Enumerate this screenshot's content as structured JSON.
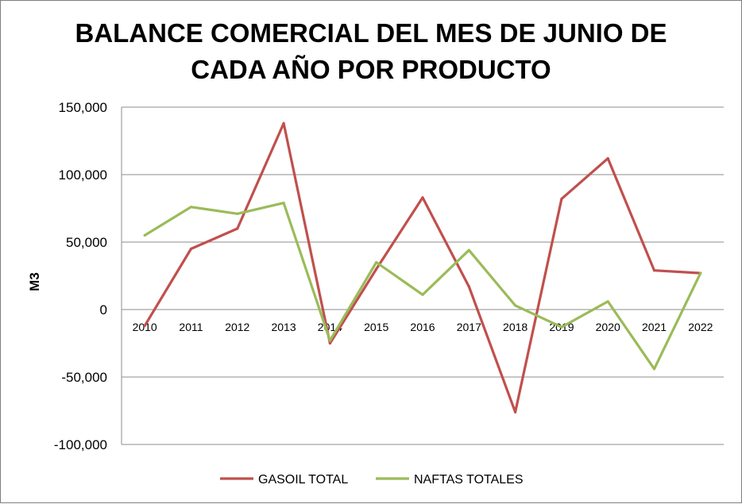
{
  "chart_data": {
    "type": "line",
    "title_lines": [
      "BALANCE COMERCIAL DEL MES DE JUNIO DE",
      "CADA AÑO POR PRODUCTO"
    ],
    "xlabel": "",
    "ylabel": "M3",
    "categories": [
      "2010",
      "2011",
      "2012",
      "2013",
      "2014",
      "2015",
      "2016",
      "2017",
      "2018",
      "2019",
      "2020",
      "2021",
      "2022"
    ],
    "ylim": [
      -100000,
      150000
    ],
    "yticks": [
      150000,
      100000,
      50000,
      0,
      -50000,
      -100000
    ],
    "ytick_labels": [
      "150,000",
      "100,000",
      "50,000",
      "0",
      "-50,000",
      "-100,000"
    ],
    "grid": true,
    "legend_position": "bottom",
    "series": [
      {
        "name": "GASOIL TOTAL",
        "color": "#c0504d",
        "values": [
          -12000,
          45000,
          60000,
          138000,
          -25000,
          30000,
          83000,
          17000,
          -76000,
          82000,
          112000,
          29000,
          27000
        ]
      },
      {
        "name": "NAFTAS TOTALES",
        "color": "#9bbb59",
        "values": [
          55000,
          76000,
          71000,
          79000,
          -23000,
          35000,
          11000,
          44000,
          3000,
          -13000,
          6000,
          -44000,
          27000
        ]
      }
    ]
  }
}
